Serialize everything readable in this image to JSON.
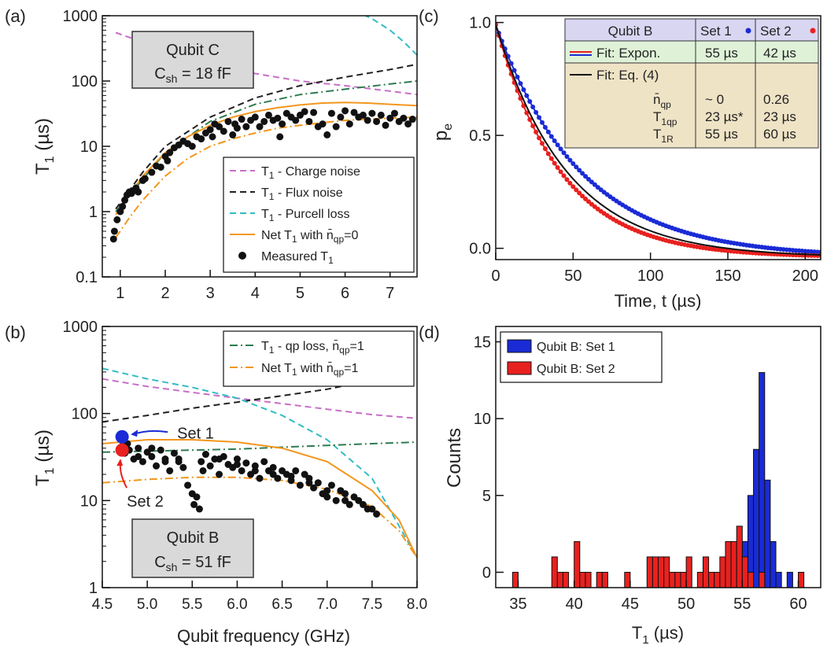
{
  "chart_data": [
    {
      "panel": "(a)",
      "type": "scatter",
      "xlabel": "",
      "ylabel": "T1 (µs)",
      "ylabel_main": "T",
      "ylabel_sub": "1",
      "ylabel_unit": " (µs)",
      "xlim": [
        0.6,
        7.6
      ],
      "ylim": [
        0.1,
        1000
      ],
      "yscale": "log",
      "xticks": [
        1,
        2,
        3,
        4,
        5,
        6,
        7
      ],
      "yticks": [
        0.1,
        1,
        10,
        100,
        1000
      ],
      "ytick_labels": [
        "0.1",
        "1",
        "10",
        "100",
        "1000"
      ],
      "infobox": {
        "line1": "Qubit C",
        "line2_main": "C",
        "line2_sub": "sh",
        "line2_rest": " = 18 fF"
      },
      "legend": [
        {
          "label": "T1 - Charge noise",
          "main": "T",
          "sub": "1",
          "rest": " - Charge noise",
          "color": "#c86ec8",
          "dash": "8,5"
        },
        {
          "label": "T1 - Flux noise",
          "main": "T",
          "sub": "1",
          "rest": " - Flux noise",
          "color": "#222222",
          "dash": "8,5"
        },
        {
          "label": "T1 - Purcell loss",
          "main": "T",
          "sub": "1",
          "rest": " - Purcell loss",
          "color": "#33bcc4",
          "dash": "8,5"
        },
        {
          "label": "Net T1 with n̄qp=0",
          "main": "Net T",
          "sub": "1",
          "rest": " with n̄",
          "sub2": "qp",
          "rest2": "=0",
          "color": "#f2961e",
          "dash": ""
        },
        {
          "label": "Measured T1",
          "main": "Measured T",
          "sub": "1",
          "rest": "",
          "color": "#111111",
          "marker": "dot"
        }
      ],
      "series": [
        {
          "name": "T1 - Charge noise",
          "color": "#c86ec8",
          "dash": "8,5",
          "x": [
            0.9,
            2,
            3,
            4,
            5,
            6,
            7,
            7.6
          ],
          "y": [
            550,
            300,
            180,
            130,
            100,
            85,
            70,
            62
          ]
        },
        {
          "name": "T1 - Flux noise",
          "color": "#222222",
          "dash": "8,5",
          "x": [
            0.9,
            1.5,
            2,
            3,
            4,
            5,
            6,
            7,
            7.6
          ],
          "y": [
            1.1,
            4,
            10,
            28,
            55,
            85,
            115,
            150,
            180
          ]
        },
        {
          "name": "T1 - Purcell loss",
          "color": "#33bcc4",
          "dash": "8,5",
          "x": [
            6.2,
            6.6,
            7,
            7.3,
            7.6
          ],
          "y": [
            1200,
            900,
            600,
            400,
            250
          ]
        },
        {
          "name": "qp loss",
          "color": "#2e7b4f",
          "dash": "10,4,2,4",
          "x": [
            0.9,
            2,
            3,
            4,
            5,
            6,
            7,
            7.6
          ],
          "y": [
            1.0,
            8,
            24,
            44,
            62,
            75,
            90,
            100
          ]
        },
        {
          "name": "Net T1 with n̄qp=0",
          "color": "#f2961e",
          "dash": "",
          "x": [
            0.9,
            1.2,
            1.5,
            2,
            2.5,
            3,
            3.5,
            4,
            4.5,
            5,
            5.5,
            6,
            6.5,
            7,
            7.6
          ],
          "y": [
            0.9,
            1.8,
            3.5,
            8,
            14,
            21,
            28,
            34,
            39,
            43,
            46,
            47,
            46,
            44,
            42
          ]
        },
        {
          "name": "Net T1 with n̄qp=1",
          "color": "#f2961e",
          "dash": "10,4,2,4",
          "x": [
            0.9,
            1.2,
            1.5,
            2,
            2.5,
            3,
            3.5,
            4,
            4.5,
            5,
            5.5,
            6,
            6.5,
            7,
            7.6
          ],
          "y": [
            0.4,
            0.8,
            1.5,
            3.5,
            6.5,
            10,
            13,
            16,
            19,
            21,
            23,
            25,
            26,
            27,
            28
          ]
        }
      ],
      "measured": {
        "x": [
          0.85,
          0.87,
          0.93,
          1.0,
          1.05,
          1.1,
          1.15,
          1.2,
          1.25,
          1.3,
          1.35,
          1.4,
          1.5,
          1.55,
          1.7,
          1.8,
          1.9,
          2.0,
          2.05,
          2.1,
          2.2,
          2.3,
          2.4,
          2.5,
          2.6,
          2.7,
          2.8,
          2.9,
          3.0,
          3.05,
          3.1,
          3.2,
          3.3,
          3.4,
          3.5,
          3.55,
          3.6,
          3.7,
          3.8,
          3.9,
          4.0,
          4.1,
          4.2,
          4.3,
          4.4,
          4.5,
          4.55,
          4.6,
          4.7,
          4.8,
          4.9,
          5.0,
          5.1,
          5.2,
          5.3,
          5.4,
          5.5,
          5.6,
          5.7,
          5.8,
          5.9,
          6.0,
          6.1,
          6.2,
          6.3,
          6.4,
          6.5,
          6.6,
          6.7,
          6.8,
          6.9,
          7.0,
          7.1,
          7.2,
          7.3,
          7.4,
          7.5
        ],
        "y": [
          0.38,
          0.5,
          0.75,
          1.0,
          1.2,
          1.5,
          1.8,
          2.0,
          1.9,
          2.1,
          2.3,
          2.0,
          3.0,
          3.2,
          4.0,
          5.0,
          4.8,
          7.0,
          6.0,
          8.0,
          9.5,
          10.5,
          12,
          11,
          10,
          14,
          13,
          16,
          18,
          14,
          22,
          20,
          17,
          24,
          15,
          22,
          19,
          26,
          20,
          25,
          28,
          20,
          24,
          30,
          25,
          27,
          14,
          22,
          32,
          28,
          25,
          30,
          34,
          24,
          33,
          20,
          22,
          15,
          32,
          20,
          28,
          35,
          22,
          33,
          28,
          30,
          25,
          32,
          24,
          30,
          21,
          27,
          32,
          24,
          27,
          22,
          26
        ]
      }
    },
    {
      "panel": "(b)",
      "type": "scatter",
      "xlabel": "Qubit frequency (GHz)",
      "ylabel": "T1 (µs)",
      "ylabel_main": "T",
      "ylabel_sub": "1",
      "ylabel_unit": " (µs)",
      "xlim": [
        4.5,
        8.0
      ],
      "ylim": [
        1,
        1000
      ],
      "yscale": "log",
      "xticks": [
        4.5,
        5.0,
        5.5,
        6.0,
        6.5,
        7.0,
        7.5,
        8.0
      ],
      "xtick_labels": [
        "4.5",
        "5.0",
        "5.5",
        "6.0",
        "6.5",
        "7.0",
        "7.5",
        "8.0"
      ],
      "yticks": [
        1,
        10,
        100,
        1000
      ],
      "ytick_labels": [
        "1",
        "10",
        "100",
        "1000"
      ],
      "infobox": {
        "line1": "Qubit B",
        "line2_main": "C",
        "line2_sub": "sh",
        "line2_rest": " = 51 fF"
      },
      "legend": [
        {
          "label": "T1 - qp loss, n̄qp=1",
          "main": "T",
          "sub": "1",
          "rest": " - qp loss, n̄",
          "sub2": "qp",
          "rest2": "=1",
          "color": "#2e7b4f",
          "dash": "10,4,2,4"
        },
        {
          "label": "Net T1 with n̄qp=1",
          "main": "Net T",
          "sub": "1",
          "rest": " with n̄",
          "sub2": "qp",
          "rest2": "=1",
          "color": "#f2961e",
          "dash": "10,4,2,4"
        }
      ],
      "annotations": [
        {
          "text": "Set 1",
          "color": "#1a2bd6",
          "x": 5.0,
          "y": 55
        },
        {
          "text": "Set 2",
          "color": "#e8211f",
          "x": 4.75,
          "y": 12
        }
      ],
      "highlight_points": [
        {
          "name": "Set 1",
          "color": "#1a2bd6",
          "x": 4.72,
          "y": 54
        },
        {
          "name": "Set 2",
          "color": "#e8211f",
          "x": 4.72,
          "y": 38
        }
      ],
      "series": [
        {
          "name": "Charge noise",
          "color": "#c86ec8",
          "dash": "8,5",
          "x": [
            4.5,
            5,
            5.5,
            6,
            6.5,
            7,
            7.5,
            8.0
          ],
          "y": [
            250,
            205,
            175,
            150,
            130,
            112,
            97,
            88
          ]
        },
        {
          "name": "Flux noise",
          "color": "#222222",
          "dash": "8,5",
          "x": [
            4.5,
            5,
            5.5,
            6,
            6.5,
            7,
            7.3
          ],
          "y": [
            80,
            95,
            115,
            135,
            160,
            190,
            220
          ]
        },
        {
          "name": "Purcell loss",
          "color": "#33bcc4",
          "dash": "8,5",
          "x": [
            4.5,
            5,
            5.5,
            6,
            6.5,
            7,
            7.5,
            8.0
          ],
          "y": [
            330,
            250,
            200,
            150,
            95,
            50,
            18,
            2.2
          ]
        },
        {
          "name": "qp loss",
          "color": "#2e7b4f",
          "dash": "10,4,2,4",
          "x": [
            4.5,
            5,
            5.5,
            6,
            6.5,
            7,
            7.5,
            8.0
          ],
          "y": [
            36,
            37,
            38,
            39,
            41,
            43,
            45,
            47
          ]
        },
        {
          "name": "Net n0",
          "color": "#f2961e",
          "dash": "",
          "x": [
            4.5,
            5,
            5.5,
            6,
            6.5,
            7,
            7.5,
            7.8,
            8.0
          ],
          "y": [
            45,
            50,
            50,
            47,
            40,
            28,
            13,
            6,
            2.2
          ]
        },
        {
          "name": "Net n1",
          "color": "#f2961e",
          "dash": "10,4,2,4",
          "x": [
            4.5,
            5,
            5.5,
            6,
            6.5,
            7,
            7.5,
            7.8,
            8.0
          ],
          "y": [
            16,
            17.5,
            18.5,
            18.5,
            17,
            13.5,
            8.5,
            4.5,
            2.2
          ]
        }
      ],
      "measured": {
        "x": [
          4.72,
          4.75,
          4.8,
          4.85,
          4.9,
          4.95,
          5.0,
          5.05,
          5.1,
          5.15,
          5.2,
          5.25,
          5.3,
          5.35,
          5.4,
          5.45,
          5.5,
          5.52,
          5.55,
          5.58,
          5.6,
          5.65,
          5.7,
          5.75,
          5.8,
          5.85,
          5.9,
          5.95,
          6.0,
          6.05,
          6.1,
          6.15,
          6.2,
          6.25,
          6.3,
          6.35,
          6.4,
          6.45,
          6.5,
          6.55,
          6.6,
          6.65,
          6.7,
          6.75,
          6.8,
          6.85,
          6.9,
          6.95,
          7.0,
          7.05,
          7.1,
          7.15,
          7.2,
          7.25,
          7.3,
          7.35,
          7.4,
          7.45,
          7.5,
          7.55,
          4.78,
          4.9,
          5.05,
          5.2,
          5.35,
          5.62,
          5.8,
          6.0,
          6.2,
          6.4,
          6.6,
          6.8,
          7.0,
          7.2
        ],
        "y": [
          42,
          35,
          38,
          30,
          40,
          28,
          36,
          32,
          25,
          38,
          28,
          22,
          35,
          30,
          24,
          15,
          12,
          9,
          11,
          8,
          28,
          34,
          25,
          30,
          20,
          32,
          26,
          24,
          30,
          22,
          27,
          20,
          25,
          18,
          28,
          22,
          24,
          18,
          22,
          20,
          17,
          22,
          15,
          20,
          18,
          14,
          16,
          12,
          11,
          15,
          10,
          13,
          12,
          9,
          11,
          10,
          9,
          8,
          8,
          7,
          45,
          32,
          40,
          30,
          28,
          22,
          30,
          26,
          22,
          20,
          19,
          16,
          13,
          10
        ]
      }
    },
    {
      "panel": "(c)",
      "type": "line",
      "xlabel": "Time, t (µs)",
      "ylabel": "pe",
      "ylabel_main": "p",
      "ylabel_sub": "e",
      "xlim": [
        0,
        210
      ],
      "ylim": [
        -0.05,
        1.03
      ],
      "xticks": [
        0,
        50,
        100,
        150,
        200
      ],
      "yticks": [
        0.0,
        0.5,
        1.0
      ],
      "ytick_labels": [
        "0.0",
        "0.5",
        "1.0"
      ],
      "table": {
        "header": [
          "Qubit B",
          "Set 1",
          "Set 2"
        ],
        "fit_expon": [
          "Fit: Expon.",
          "55 µs",
          "42 µs"
        ],
        "fit_eq": "Fit: Eq. (4)",
        "params": [
          {
            "main": "n̄",
            "sub": "qp",
            "set1": "~ 0",
            "set2": "0.26"
          },
          {
            "main": "T",
            "sub": "1qp",
            "set1": "23 µs*",
            "set2": "23 µs"
          },
          {
            "main": "T",
            "sub": "1R",
            "set1": "55 µs",
            "set2": "60 µs"
          }
        ]
      },
      "series": [
        {
          "name": "Set 1 data",
          "color": "#1a2bd6",
          "kind": "dots",
          "tau": 55
        },
        {
          "name": "Set 2 data",
          "color": "#e8211f",
          "kind": "dots",
          "tau": 42
        },
        {
          "name": "Fit: Expon. Set 1",
          "color": "#1a2bd6",
          "kind": "line",
          "tau": 55
        },
        {
          "name": "Fit: Expon. Set 2",
          "color": "#e8211f",
          "kind": "line",
          "tau": 42
        },
        {
          "name": "Fit: Eq. (4)",
          "color": "#111111",
          "kind": "line",
          "tau": 46
        }
      ]
    },
    {
      "panel": "(d)",
      "type": "bar",
      "xlabel": "T1 (µs)",
      "xlabel_main": "T",
      "xlabel_sub": "1",
      "xlabel_unit": " (µs)",
      "ylabel": "Counts",
      "xlim": [
        33,
        62
      ],
      "ylim": [
        -1,
        16
      ],
      "xticks": [
        35,
        40,
        45,
        50,
        55,
        60
      ],
      "yticks": [
        0,
        5,
        10,
        15
      ],
      "legend": [
        {
          "label": "Qubit B: Set 1",
          "color": "#1a2bd6"
        },
        {
          "label": "Qubit B: Set 2",
          "color": "#e8211f"
        }
      ],
      "series": [
        {
          "name": "Qubit B: Set 1",
          "color": "#1a2bd6",
          "bins": [
            54,
            54.5,
            55,
            55.5,
            56,
            56.5,
            57,
            57.5,
            58,
            58.5,
            59,
            59.5,
            60,
            60.5
          ],
          "values": [
            0,
            1,
            3,
            6,
            9,
            14,
            7,
            3,
            1,
            0,
            1,
            0,
            0,
            0
          ]
        },
        {
          "name": "Qubit B: Set 2",
          "color": "#e8211f",
          "bins": [
            34.5,
            35,
            35.5,
            36,
            37.5,
            38,
            38.5,
            39,
            39.5,
            40,
            40.5,
            41,
            41.5,
            42,
            42.5,
            43,
            44,
            44.5,
            45,
            46.5,
            47,
            47.5,
            48,
            48.5,
            49,
            49.5,
            50,
            50.5,
            51,
            51.5,
            52,
            52.5,
            53,
            53.5,
            54,
            54.5,
            55,
            55.5,
            56,
            56.5,
            57,
            59,
            59.5,
            60,
            60.5
          ],
          "values": [
            1,
            0,
            0,
            0,
            0,
            2,
            1,
            1,
            0,
            3,
            1,
            1,
            0,
            1,
            1,
            0,
            0,
            1,
            0,
            2,
            2,
            2,
            2,
            1,
            1,
            1,
            2,
            0,
            1,
            2,
            1,
            1,
            2,
            3,
            3,
            4,
            2,
            1,
            0,
            1,
            0,
            0,
            0,
            1,
            0
          ]
        }
      ]
    }
  ],
  "panel_labels": [
    "(a)",
    "(b)",
    "(c)",
    "(d)"
  ]
}
